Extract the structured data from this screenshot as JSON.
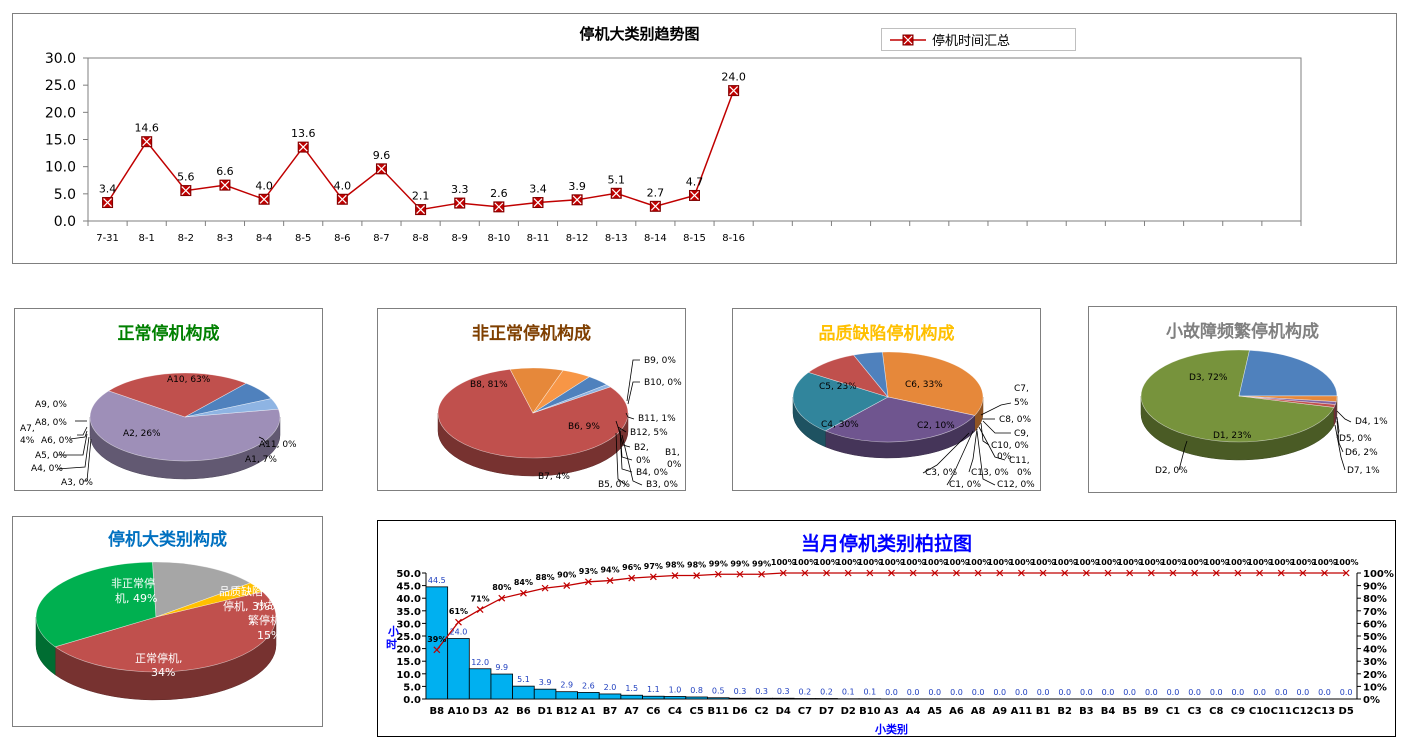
{
  "colors": {
    "line": "#c00000",
    "marker_fill": "#c00000",
    "bar": "#00b0f0",
    "title_green": "#008000",
    "title_brown": "#7f3f00",
    "title_gold": "#ffc000",
    "title_gray": "#808080",
    "title_blue": "#0070c0",
    "title_pareto": "#0000ff"
  },
  "trend": {
    "title": "停机大类别趋势图",
    "legend": "停机时间汇总",
    "chart_data": {
      "type": "line",
      "title": "停机大类别趋势图",
      "categories": [
        "7-31",
        "8-1",
        "8-2",
        "8-3",
        "8-4",
        "8-5",
        "8-6",
        "8-7",
        "8-8",
        "8-9",
        "8-10",
        "8-11",
        "8-12",
        "8-13",
        "8-14",
        "8-15",
        "8-16"
      ],
      "series": [
        {
          "name": "停机时间汇总",
          "values": [
            3.4,
            14.6,
            5.6,
            6.6,
            4.0,
            13.6,
            4.0,
            9.6,
            2.1,
            3.3,
            2.6,
            3.4,
            3.9,
            5.1,
            2.7,
            4.7,
            24.0
          ]
        }
      ],
      "labels": [
        "3.4",
        "14.6",
        "5.6",
        "6.6",
        "4.0",
        "13.6",
        "4.0",
        "9.6",
        "2.1",
        "3.3",
        "2.6",
        "3.4",
        "3.9",
        "5.1",
        "2.7",
        "4.7",
        "24.0"
      ],
      "total_slots": 31,
      "ylim": [
        0,
        30
      ],
      "yticks": [
        "0.0",
        "5.0",
        "10.0",
        "15.0",
        "20.0",
        "25.0",
        "30.0"
      ],
      "grid": false,
      "legend_position": "top-right"
    }
  },
  "pie_normal": {
    "title": "正常停机构成",
    "chart_data": {
      "type": "pie",
      "title": "正常停机构成",
      "slices": [
        {
          "name": "A10",
          "value": 63,
          "color": "#9e8fb8"
        },
        {
          "name": "A2",
          "value": 26,
          "color": "#c0504d"
        },
        {
          "name": "A1",
          "value": 7,
          "color": "#4f81bd"
        },
        {
          "name": "A7",
          "value": 4,
          "color": "#8eb4e3"
        },
        {
          "name": "A11",
          "value": 0
        },
        {
          "name": "A9",
          "value": 0
        },
        {
          "name": "A8",
          "value": 0
        },
        {
          "name": "A6",
          "value": 0
        },
        {
          "name": "A5",
          "value": 0
        },
        {
          "name": "A4",
          "value": 0
        },
        {
          "name": "A3",
          "value": 0
        }
      ],
      "labels": [
        {
          "text": "A10, 63%"
        },
        {
          "text": "A2, 26%"
        },
        {
          "text": "A1, 7%"
        },
        {
          "text": "A11, 0%"
        },
        {
          "text": "A9, 0%"
        },
        {
          "text": "A8, 0%"
        },
        {
          "text": "A7,"
        },
        {
          "text": "4%"
        },
        {
          "text": "A6, 0%"
        },
        {
          "text": "A5, 0%"
        },
        {
          "text": "A4, 0%"
        },
        {
          "text": "A3, 0%"
        }
      ]
    }
  },
  "pie_abnormal": {
    "title": "非正常停机构成",
    "chart_data": {
      "type": "pie",
      "title": "非正常停机构成",
      "slices": [
        {
          "name": "B8",
          "value": 81,
          "color": "#c0504d"
        },
        {
          "name": "B6",
          "value": 9,
          "color": "#e6883a"
        },
        {
          "name": "B12",
          "value": 5,
          "color": "#f79646"
        },
        {
          "name": "B7",
          "value": 4,
          "color": "#4f81bd"
        },
        {
          "name": "B11",
          "value": 1,
          "color": "#8eb4e3"
        },
        {
          "name": "B9",
          "value": 0
        },
        {
          "name": "B10",
          "value": 0
        },
        {
          "name": "B2",
          "value": 0
        },
        {
          "name": "B1",
          "value": 0
        },
        {
          "name": "B4",
          "value": 0
        },
        {
          "name": "B5",
          "value": 0
        },
        {
          "name": "B3",
          "value": 0
        }
      ],
      "labels": [
        {
          "text": "B8, 81%"
        },
        {
          "text": "B9, 0%"
        },
        {
          "text": "B10, 0%"
        },
        {
          "text": "B11, 1%"
        },
        {
          "text": "B12, 5%"
        },
        {
          "text": "B6, 9%"
        },
        {
          "text": "B2,"
        },
        {
          "text": "B1,"
        },
        {
          "text": "0%"
        },
        {
          "text": "0%"
        },
        {
          "text": "B4, 0%"
        },
        {
          "text": "B7, 4%"
        },
        {
          "text": "B5, 0%"
        },
        {
          "text": "B3, 0%"
        }
      ]
    }
  },
  "pie_quality": {
    "title": "品质缺陷停机构成",
    "chart_data": {
      "type": "pie",
      "title": "品质缺陷停机构成",
      "slices": [
        {
          "name": "C6",
          "value": 33,
          "color": "#e6883a"
        },
        {
          "name": "C4",
          "value": 30,
          "color": "#6f558f"
        },
        {
          "name": "C5",
          "value": 23,
          "color": "#31859c"
        },
        {
          "name": "C2",
          "value": 10,
          "color": "#c0504d"
        },
        {
          "name": "C7",
          "value": 5,
          "color": "#4f81bd"
        },
        {
          "name": "C8",
          "value": 0
        },
        {
          "name": "C9",
          "value": 0
        },
        {
          "name": "C10",
          "value": 0
        },
        {
          "name": "C11",
          "value": 0
        },
        {
          "name": "C13",
          "value": 0
        },
        {
          "name": "C12",
          "value": 0
        },
        {
          "name": "C3",
          "value": 0
        },
        {
          "name": "C1",
          "value": 0
        }
      ],
      "labels": [
        {
          "text": "C6, 33%"
        },
        {
          "text": "C5, 23%"
        },
        {
          "text": "C4, 30%"
        },
        {
          "text": "C2, 10%"
        },
        {
          "text": "C7,"
        },
        {
          "text": "5%"
        },
        {
          "text": "C8, 0%"
        },
        {
          "text": "C9,"
        },
        {
          "text": "C10, 0%"
        },
        {
          "text": "C11,"
        },
        {
          "text": "C13, 0%"
        },
        {
          "text": "0%"
        },
        {
          "text": "0%"
        },
        {
          "text": "C3, 0%"
        },
        {
          "text": "C1, 0%"
        },
        {
          "text": "C12, 0%"
        }
      ]
    }
  },
  "pie_minor": {
    "title": "小故障频繁停机构成",
    "chart_data": {
      "type": "pie",
      "title": "小故障频繁停机构成",
      "slices": [
        {
          "name": "D3",
          "value": 72,
          "color": "#77933c"
        },
        {
          "name": "D1",
          "value": 23,
          "color": "#4f81bd"
        },
        {
          "name": "D6",
          "value": 2,
          "color": "#e6883a"
        },
        {
          "name": "D4",
          "value": 1,
          "color": "#8064a2"
        },
        {
          "name": "D7",
          "value": 1,
          "color": "#c0504d"
        },
        {
          "name": "D2",
          "value": 0
        },
        {
          "name": "D5",
          "value": 0
        }
      ],
      "labels": [
        {
          "text": "D3, 72%"
        },
        {
          "text": "D1, 23%"
        },
        {
          "text": "D4, 1%"
        },
        {
          "text": "D5, 0%"
        },
        {
          "text": "D6, 2%"
        },
        {
          "text": "D7, 1%"
        },
        {
          "text": "D2, 0%"
        }
      ]
    }
  },
  "pie_major": {
    "title": "停机大类别构成",
    "chart_data": {
      "type": "pie",
      "title": "停机大类别构成",
      "slices": [
        {
          "name": "非正常停机",
          "value": 49,
          "color": "#c0504d"
        },
        {
          "name": "正常停机",
          "value": 34,
          "color": "#00b050"
        },
        {
          "name": "小故障频繁停机",
          "value": 15,
          "color": "#a6a6a6"
        },
        {
          "name": "品质缺陷停机",
          "value": 3,
          "color": "#ffc000"
        }
      ],
      "labels": [
        {
          "text": "非正常停"
        },
        {
          "text": "机, 49%"
        },
        {
          "text": "品质缺陷"
        },
        {
          "text": "停机, 3%"
        },
        {
          "text": "小故障频"
        },
        {
          "text": "繁停机,"
        },
        {
          "text": "15%"
        },
        {
          "text": "正常停机,"
        },
        {
          "text": "34%"
        }
      ]
    }
  },
  "pareto": {
    "title": "当月停机类别柏拉图",
    "xlabel": "小类别",
    "ylabel": "小时",
    "chart_data": {
      "type": "bar",
      "title": "当月停机类别柏拉图",
      "xlabel": "小类别",
      "ylabel": "小时",
      "categories": [
        "B8",
        "A10",
        "D3",
        "A2",
        "B6",
        "D1",
        "B12",
        "A1",
        "B7",
        "A7",
        "C6",
        "C4",
        "C5",
        "B11",
        "D6",
        "C2",
        "D4",
        "C7",
        "D7",
        "D2",
        "B10",
        "A3",
        "A4",
        "A5",
        "A6",
        "A8",
        "A9",
        "A11",
        "B1",
        "B2",
        "B3",
        "B4",
        "B5",
        "B9",
        "C1",
        "C3",
        "C8",
        "C9",
        "C10",
        "C11",
        "C12",
        "C13",
        "D5"
      ],
      "series": [
        {
          "values": [
            44.5,
            24.0,
            12.0,
            9.9,
            5.1,
            3.9,
            2.9,
            2.6,
            2.0,
            1.5,
            1.1,
            1.0,
            0.8,
            0.5,
            0.3,
            0.3,
            0.3,
            0.2,
            0.2,
            0.1,
            0.1,
            0,
            0,
            0,
            0,
            0,
            0,
            0,
            0,
            0,
            0,
            0,
            0,
            0,
            0,
            0,
            0,
            0,
            0,
            0,
            0,
            0,
            0
          ]
        },
        {
          "values": [
            39,
            61,
            71,
            80,
            84,
            88,
            90,
            93,
            94,
            96,
            97,
            98,
            98,
            99,
            99,
            99,
            100,
            100,
            100,
            100,
            100,
            100,
            100,
            100,
            100,
            100,
            100,
            100,
            100,
            100,
            100,
            100,
            100,
            100,
            100,
            100,
            100,
            100,
            100,
            100,
            100,
            100,
            100
          ]
        }
      ],
      "bar_labels": [
        "44.5",
        "24.0",
        "12.0",
        "9.9",
        "5.1",
        "3.9",
        "2.9",
        "2.6",
        "2.0",
        "1.5",
        "1.1",
        "1.0",
        "0.8",
        "0.5",
        "0.3",
        "0.3",
        "0.3",
        "0.2",
        "0.2",
        "0.1",
        "0.1",
        "0.0",
        "0.0",
        "0.0",
        "0.0",
        "0.0",
        "0.0",
        "0.0",
        "0.0",
        "0.0",
        "0.0",
        "0.0",
        "0.0",
        "0.0",
        "0.0",
        "0.0",
        "0.0",
        "0.0",
        "0.0",
        "0.0",
        "0.0",
        "0.0",
        "0.0"
      ],
      "pct_labels": [
        "39%",
        "61%",
        "71%",
        "80%",
        "84%",
        "88%",
        "90%",
        "93%",
        "94%",
        "96%",
        "97%",
        "98%",
        "98%",
        "99%",
        "99%",
        "99%",
        "100%",
        "100%",
        "100%",
        "100%",
        "100%",
        "100%",
        "100%",
        "100%",
        "100%",
        "100%",
        "100%",
        "100%",
        "100%",
        "100%",
        "100%",
        "100%",
        "100%",
        "100%",
        "100%",
        "100%",
        "100%",
        "100%",
        "100%",
        "100%",
        "100%",
        "100%",
        "100%"
      ],
      "ylim": [
        0,
        50
      ],
      "yticks": [
        "0.0",
        "5.0",
        "10.0",
        "15.0",
        "20.0",
        "25.0",
        "30.0",
        "35.0",
        "40.0",
        "45.0",
        "50.0"
      ],
      "y2lim": [
        0,
        100
      ],
      "y2ticks": [
        "0%",
        "10%",
        "20%",
        "30%",
        "40%",
        "50%",
        "60%",
        "70%",
        "80%",
        "90%",
        "100%"
      ],
      "grid": false
    }
  }
}
